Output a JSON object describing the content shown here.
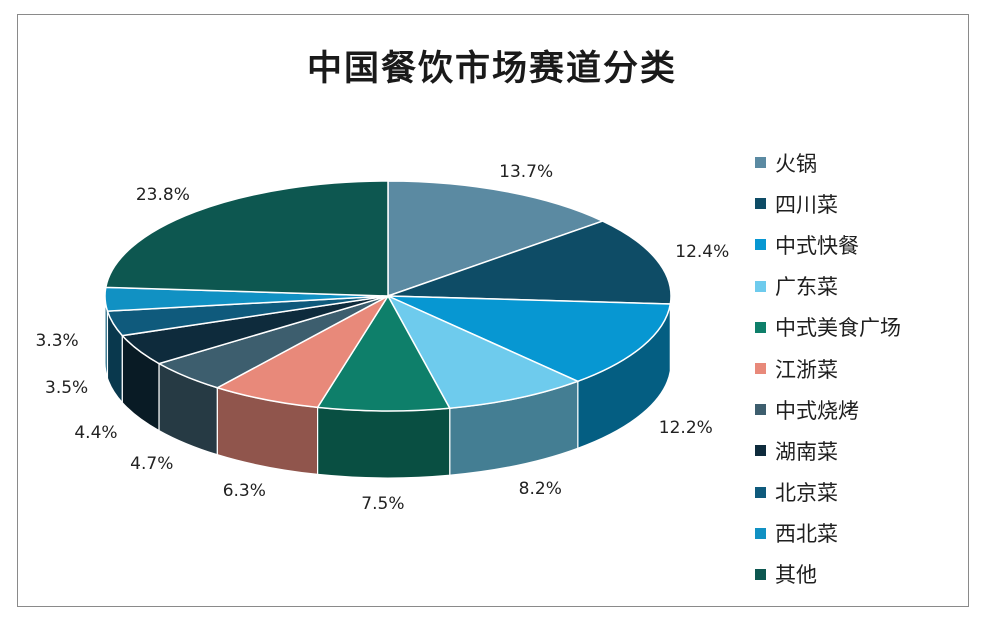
{
  "chart_data": {
    "type": "pie",
    "title": "中国餐饮市场赛道分类",
    "legend_position": "right",
    "slices": [
      {
        "label": "火锅",
        "value": 13.7,
        "value_label": "13.7%",
        "color": "#5b8aa2"
      },
      {
        "label": "四川菜",
        "value": 12.4,
        "value_label": "12.4%",
        "color": "#0e4c66"
      },
      {
        "label": "中式快餐",
        "value": 12.2,
        "value_label": "12.2%",
        "color": "#0797d2"
      },
      {
        "label": "广东菜",
        "value": 8.2,
        "value_label": "8.2%",
        "color": "#6ecbed"
      },
      {
        "label": "中式美食广场",
        "value": 7.5,
        "value_label": "7.5%",
        "color": "#0e7f6a"
      },
      {
        "label": "江浙菜",
        "value": 6.3,
        "value_label": "6.3%",
        "color": "#e8897a"
      },
      {
        "label": "中式烧烤",
        "value": 4.7,
        "value_label": "4.7%",
        "color": "#3d5e6e"
      },
      {
        "label": "湖南菜",
        "value": 4.4,
        "value_label": "4.4%",
        "color": "#0e2b3c"
      },
      {
        "label": "北京菜",
        "value": 3.5,
        "value_label": "3.5%",
        "color": "#0f5a7c"
      },
      {
        "label": "西北菜",
        "value": 3.3,
        "value_label": "3.3%",
        "color": "#1191c3"
      },
      {
        "label": "其他",
        "value": 23.8,
        "value_label": "23.8%",
        "color": "#0d5750"
      }
    ]
  }
}
